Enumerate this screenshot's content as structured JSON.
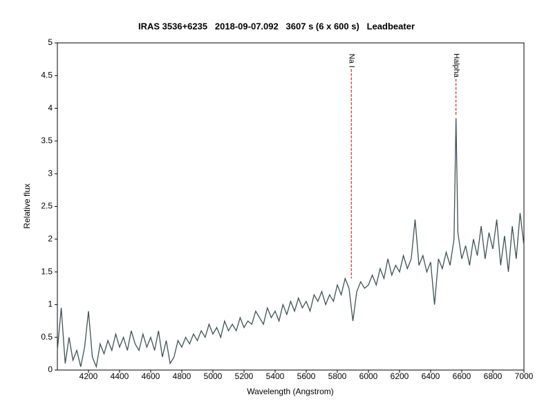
{
  "chart_data": {
    "type": "line",
    "title": "IRAS 3536+6235   2018-09-07.092   3607 s (6 x 600 s)   Leadbeater",
    "x_label": "Wavelength (Angstrom)",
    "y_label": "Relative flux",
    "xlim": [
      4000,
      7000
    ],
    "ylim": [
      0,
      5
    ],
    "xticks": [
      4200,
      4400,
      4600,
      4800,
      5000,
      5200,
      5400,
      5600,
      5800,
      6000,
      6200,
      6400,
      6600,
      6800,
      7000
    ],
    "yticks": [
      0,
      0.5,
      1,
      1.5,
      2,
      2.5,
      3,
      3.5,
      4,
      4.5,
      5
    ],
    "x": [
      4000,
      4025,
      4050,
      4075,
      4100,
      4125,
      4150,
      4175,
      4200,
      4225,
      4250,
      4275,
      4300,
      4325,
      4350,
      4375,
      4400,
      4425,
      4450,
      4475,
      4500,
      4525,
      4550,
      4575,
      4600,
      4625,
      4650,
      4675,
      4700,
      4725,
      4750,
      4775,
      4800,
      4825,
      4850,
      4875,
      4900,
      4925,
      4950,
      4975,
      5000,
      5025,
      5050,
      5075,
      5100,
      5125,
      5150,
      5175,
      5200,
      5225,
      5250,
      5275,
      5300,
      5325,
      5350,
      5375,
      5400,
      5425,
      5450,
      5475,
      5500,
      5525,
      5550,
      5575,
      5600,
      5625,
      5650,
      5675,
      5700,
      5725,
      5750,
      5775,
      5800,
      5825,
      5850,
      5875,
      5900,
      5925,
      5950,
      5975,
      6000,
      6025,
      6050,
      6075,
      6100,
      6125,
      6150,
      6175,
      6200,
      6225,
      6250,
      6275,
      6300,
      6325,
      6350,
      6375,
      6400,
      6425,
      6450,
      6475,
      6500,
      6525,
      6550,
      6563,
      6575,
      6600,
      6625,
      6650,
      6675,
      6700,
      6725,
      6750,
      6775,
      6800,
      6825,
      6850,
      6875,
      6900,
      6925,
      6950,
      6975,
      7000
    ],
    "series": [
      {
        "color": "#3d5252",
        "values": [
          0.3,
          0.95,
          0.1,
          0.5,
          0.15,
          0.3,
          0.05,
          0.35,
          0.9,
          0.2,
          0.05,
          0.4,
          0.25,
          0.45,
          0.3,
          0.55,
          0.35,
          0.5,
          0.3,
          0.6,
          0.4,
          0.3,
          0.55,
          0.35,
          0.5,
          0.3,
          0.6,
          0.2,
          0.45,
          0.1,
          0.2,
          0.45,
          0.35,
          0.5,
          0.4,
          0.55,
          0.45,
          0.6,
          0.5,
          0.7,
          0.55,
          0.65,
          0.5,
          0.75,
          0.6,
          0.7,
          0.6,
          0.8,
          0.65,
          0.75,
          0.7,
          0.9,
          0.8,
          0.7,
          0.95,
          0.8,
          0.9,
          0.75,
          1.0,
          0.85,
          1.05,
          0.9,
          1.1,
          0.95,
          1.05,
          0.9,
          1.15,
          1.05,
          1.2,
          1.0,
          1.15,
          1.05,
          1.3,
          1.15,
          1.4,
          1.25,
          0.75,
          1.2,
          1.35,
          1.25,
          1.3,
          1.45,
          1.3,
          1.55,
          1.4,
          1.7,
          1.45,
          1.6,
          1.5,
          1.75,
          1.55,
          1.7,
          2.3,
          1.6,
          1.75,
          1.5,
          1.65,
          1.0,
          1.7,
          1.55,
          1.8,
          1.6,
          2.0,
          3.85,
          2.1,
          1.7,
          1.9,
          1.6,
          2.0,
          1.75,
          2.2,
          1.7,
          2.1,
          1.85,
          2.3,
          1.6,
          2.05,
          1.5,
          2.2,
          1.7,
          2.4,
          1.9
        ]
      }
    ],
    "annotations": [
      {
        "text": "Na I",
        "x": 5890,
        "y_top": 4.6,
        "y_bottom": 1.4,
        "color": "#cc0000"
      },
      {
        "text": "Halpha",
        "x": 6563,
        "y_top": 4.45,
        "y_bottom": 3.9,
        "color": "#cc0000"
      }
    ]
  }
}
